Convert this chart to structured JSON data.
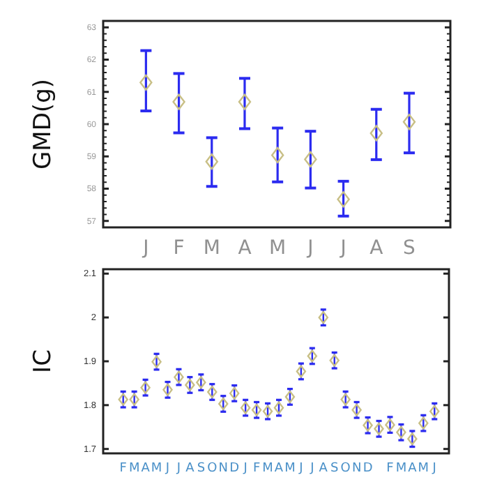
{
  "chart_data": [
    {
      "type": "scatter",
      "ylabel": "GMD(g)",
      "categories": [
        "J",
        "F",
        "M",
        "A",
        "M",
        "J",
        "J",
        "A",
        "S"
      ],
      "marker": "diamond",
      "grid": false,
      "ylim": [
        56.8,
        63.2
      ],
      "yticks": [
        57,
        58,
        59,
        60,
        61,
        62,
        63
      ],
      "series": [
        {
          "color": "#c8bf86",
          "values": [
            61.29,
            60.69,
            58.84,
            60.69,
            59.04,
            58.91,
            57.67,
            59.72,
            60.07
          ],
          "errors": [
            [
              60.41,
              62.28
            ],
            [
              59.73,
              61.57
            ],
            [
              58.07,
              59.58
            ],
            [
              59.86,
              61.42
            ],
            [
              58.21,
              59.88
            ],
            [
              58.02,
              59.78
            ],
            [
              57.15,
              58.23
            ],
            [
              58.9,
              60.46
            ],
            [
              59.11,
              60.96
            ]
          ]
        }
      ]
    },
    {
      "type": "scatter",
      "ylabel": "IC",
      "categories": [
        "F",
        "M",
        "A",
        "M",
        "J",
        "J",
        "A",
        "S",
        "O",
        "N",
        "D",
        "J",
        "F",
        "M",
        "A",
        "M",
        "J",
        "J",
        "A",
        "S",
        "O",
        "N",
        "D",
        null,
        "F",
        "M",
        "A",
        "M",
        "J"
      ],
      "marker": "diamond",
      "grid": false,
      "ylim": [
        1.69,
        2.11
      ],
      "yticks": [
        1.7,
        1.8,
        1.9,
        2,
        2.1
      ],
      "series": [
        {
          "color": "#c8bf86",
          "values": [
            1.813,
            1.813,
            1.84,
            1.899,
            1.835,
            1.864,
            1.846,
            1.852,
            1.83,
            1.803,
            1.827,
            1.794,
            1.789,
            1.786,
            1.794,
            1.819,
            1.877,
            1.912,
            2.0,
            1.902,
            1.813,
            1.789,
            1.754,
            1.746,
            1.755,
            1.738,
            1.723,
            1.759,
            1.786
          ],
          "errors": [
            0.018,
            0.018,
            0.018,
            0.018,
            0.018,
            0.018,
            0.018,
            0.018,
            0.018,
            0.018,
            0.018,
            0.018,
            0.018,
            0.018,
            0.018,
            0.018,
            0.018,
            0.018,
            0.018,
            0.018,
            0.018,
            0.018,
            0.018,
            0.018,
            0.018,
            0.018,
            0.018,
            0.018,
            0.018
          ]
        }
      ]
    }
  ]
}
